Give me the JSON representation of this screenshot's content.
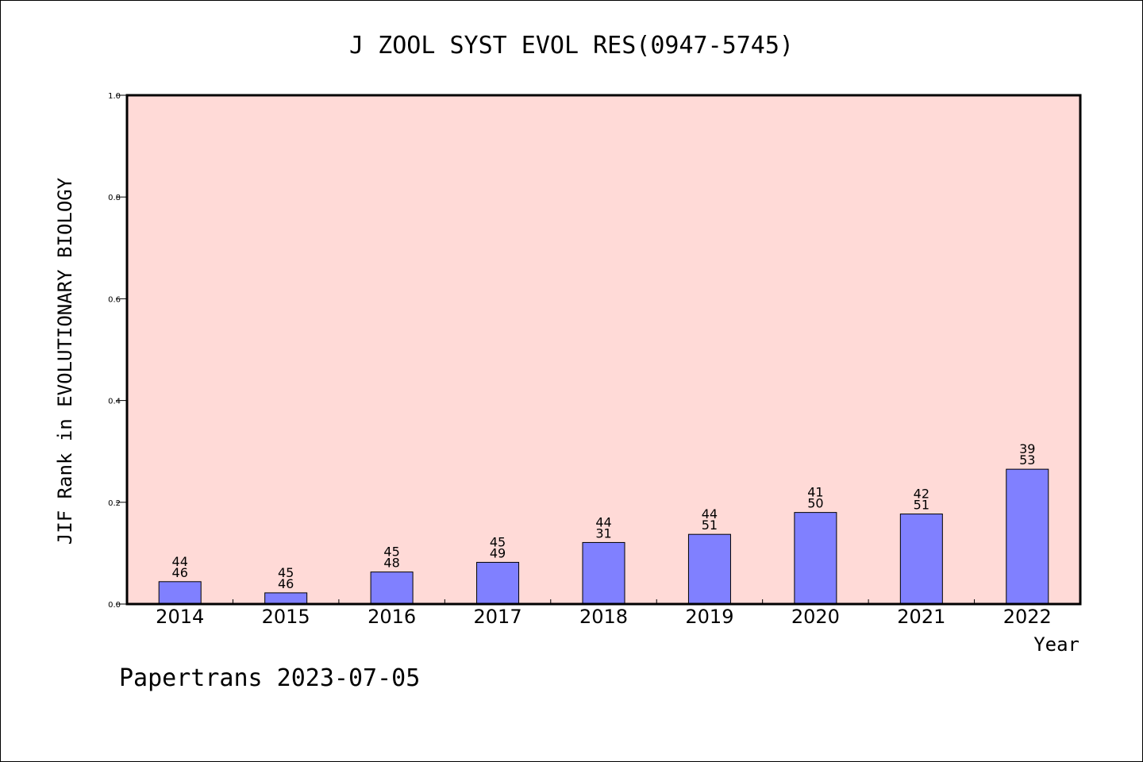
{
  "chart_data": {
    "type": "bar",
    "title": "J ZOOL SYST EVOL RES(0947-5745)",
    "ylabel": "JIF Rank in EVOLUTIONARY BIOLOGY",
    "xlabel": "Year",
    "ylim": [
      0,
      1.0
    ],
    "yticks": [
      "0.0",
      "0.2",
      "0.4",
      "0.6",
      "0.8",
      "1.0"
    ],
    "categories": [
      "2014",
      "2015",
      "2016",
      "2017",
      "2018",
      "2019",
      "2020",
      "2021",
      "2022"
    ],
    "values": [
      0.044,
      0.022,
      0.063,
      0.082,
      0.121,
      0.137,
      0.18,
      0.177,
      0.265
    ],
    "labels_top": [
      "44",
      "45",
      "45",
      "45",
      "44",
      "44",
      "41",
      "42",
      "39"
    ],
    "labels_bottom": [
      "46",
      "46",
      "48",
      "49",
      "31",
      "51",
      "50",
      "51",
      "53"
    ],
    "grid": false,
    "colors": {
      "plot_bg": "#FFDAD7",
      "bar": "#8080FF",
      "bar_edge": "#000000"
    }
  },
  "footer": "Papertrans 2023-07-05"
}
